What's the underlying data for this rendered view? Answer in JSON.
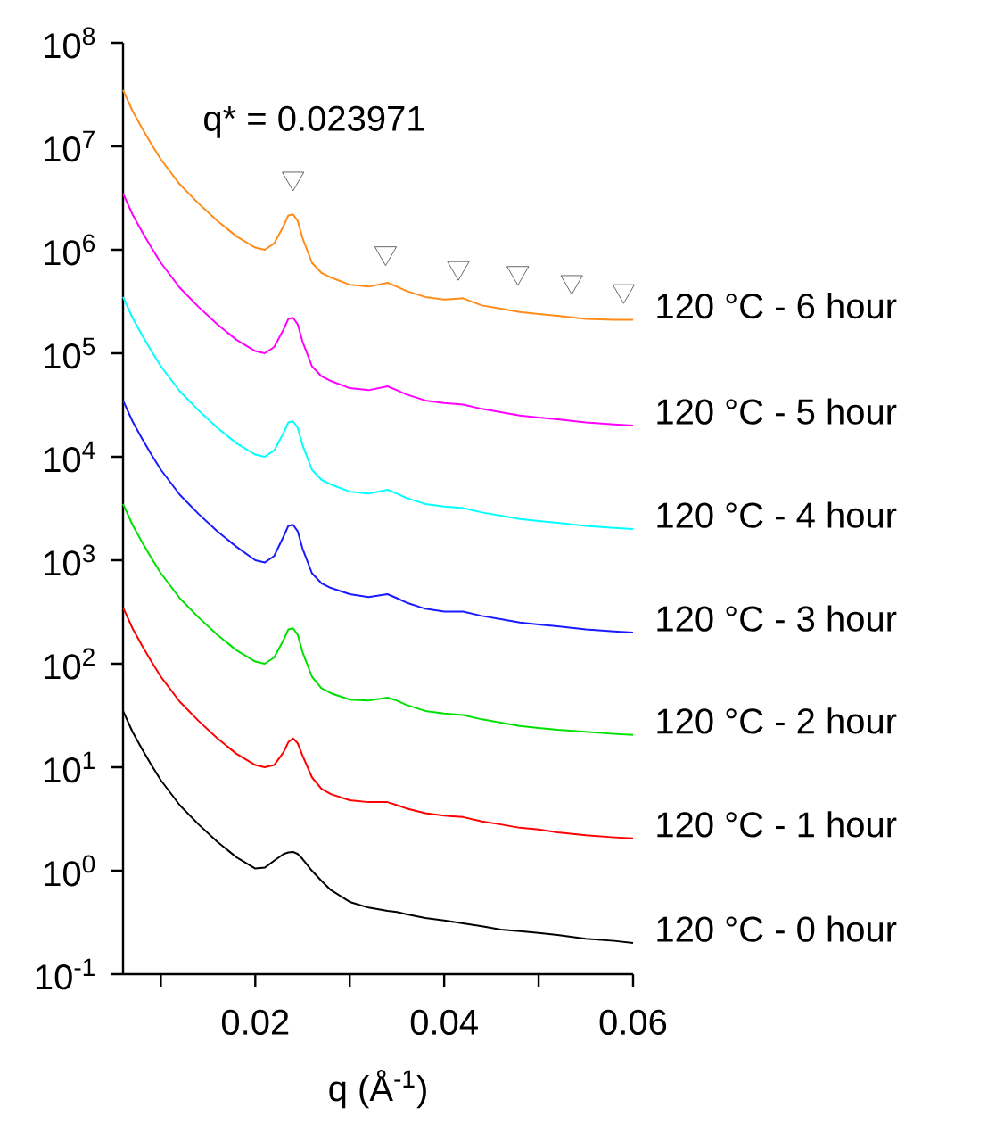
{
  "chart_data": {
    "type": "line",
    "xlabel": "q (Å$^{-1}$)",
    "log": "y",
    "xlim": [
      0.006,
      0.06
    ],
    "ylim": [
      0.1,
      100000000
    ],
    "xticks": [
      {
        "value": 0.01,
        "label": null
      },
      0.02,
      {
        "value": 0.03,
        "label": null
      },
      0.04,
      {
        "value": 0.05,
        "label": null
      },
      0.06
    ],
    "yticks": [
      {
        "value": 0.1,
        "label": "10$^{-1}$"
      },
      {
        "value": 1,
        "label": "10$^{0}$"
      },
      {
        "value": 10,
        "label": "10$^{1}$"
      },
      {
        "value": 100,
        "label": "10$^{2}$"
      },
      {
        "value": 1000,
        "label": "10$^{3}$"
      },
      {
        "value": 10000,
        "label": "10$^{4}$"
      },
      {
        "value": 100000,
        "label": "10$^{5}$"
      },
      {
        "value": 1000000,
        "label": "10$^{6}$"
      },
      {
        "value": 10000000,
        "label": "10$^{7}$"
      },
      {
        "value": 100000000,
        "label": "10$^{8}$"
      }
    ],
    "x": [
      0.006,
      0.007,
      0.008,
      0.009,
      0.01,
      0.012,
      0.014,
      0.016,
      0.018,
      0.02,
      0.021,
      0.022,
      0.023,
      0.0235,
      0.024,
      0.0245,
      0.025,
      0.026,
      0.027,
      0.028,
      0.03,
      0.032,
      0.034,
      0.035,
      0.036,
      0.038,
      0.04,
      0.042,
      0.044,
      0.046,
      0.048,
      0.05,
      0.052,
      0.055,
      0.058,
      0.06
    ],
    "annotations": [
      "q* = 0.023971"
    ],
    "series": [
      {
        "name": "120 °C - 0 hour",
        "color": "#000000",
        "values": [
          35,
          22,
          15,
          10.5,
          7.5,
          4.3,
          2.8,
          1.9,
          1.35,
          1.05,
          1.07,
          1.25,
          1.45,
          1.5,
          1.52,
          1.45,
          1.3,
          1.0,
          0.8,
          0.65,
          0.5,
          0.44,
          0.41,
          0.4,
          0.38,
          0.35,
          0.33,
          0.31,
          0.29,
          0.27,
          0.26,
          0.25,
          0.24,
          0.22,
          0.21,
          0.2
        ]
      },
      {
        "name": "120 °C - 1 hour",
        "color": "#ff0000",
        "values": [
          350,
          220,
          150,
          105,
          75,
          43,
          28,
          19,
          13.5,
          10.5,
          10,
          10.5,
          14,
          17.5,
          19,
          17,
          13,
          8,
          6.2,
          5.5,
          4.8,
          4.6,
          4.6,
          4.3,
          4,
          3.6,
          3.4,
          3.3,
          3.0,
          2.8,
          2.6,
          2.5,
          2.35,
          2.2,
          2.1,
          2.05
        ]
      },
      {
        "name": "120 °C - 2 hour",
        "color": "#00e000",
        "values": [
          3500,
          2200,
          1500,
          1050,
          750,
          430,
          280,
          190,
          135,
          105,
          100,
          115,
          170,
          215,
          220,
          190,
          130,
          75,
          58,
          52,
          45,
          44,
          47,
          44,
          40,
          35,
          33,
          32,
          29,
          27,
          25,
          24,
          23,
          22,
          21,
          20.5
        ]
      },
      {
        "name": "120 °C - 3 hour",
        "color": "#1a1aff",
        "values": [
          35000,
          22000,
          15000,
          10500,
          7500,
          4300,
          2800,
          1900,
          1350,
          1000,
          950,
          1100,
          1700,
          2150,
          2200,
          1900,
          1300,
          750,
          600,
          540,
          470,
          440,
          470,
          430,
          390,
          340,
          320,
          320,
          290,
          270,
          250,
          240,
          230,
          215,
          205,
          200
        ]
      },
      {
        "name": "120 °C - 4 hour",
        "color": "#00ffff",
        "values": [
          350000,
          220000,
          150000,
          105000,
          75000,
          43000,
          28000,
          19000,
          13500,
          10500,
          10000,
          11500,
          17000,
          21500,
          22000,
          19000,
          13000,
          7500,
          6000,
          5400,
          4600,
          4400,
          4800,
          4400,
          4000,
          3500,
          3300,
          3200,
          2900,
          2700,
          2500,
          2400,
          2300,
          2150,
          2050,
          2000
        ]
      },
      {
        "name": "120 °C - 5 hour",
        "color": "#ff00ff",
        "values": [
          3500000,
          2200000,
          1500000,
          1050000,
          750000,
          430000,
          280000,
          190000,
          135000,
          105000,
          100000,
          115000,
          170000,
          215000,
          220000,
          190000,
          130000,
          75000,
          60000,
          54000,
          46000,
          44000,
          48000,
          44000,
          40000,
          35000,
          33000,
          32000,
          29000,
          27000,
          25000,
          24000,
          23000,
          21500,
          20500,
          20000
        ]
      },
      {
        "name": "120 °C - 6 hour",
        "color": "#ff8c1a",
        "values": [
          35000000,
          22000000,
          15000000,
          10500000,
          7500000,
          4300000,
          2800000,
          1900000,
          1350000,
          1050000,
          1000000,
          1150000,
          1700000,
          2150000,
          2200000,
          1900000,
          1300000,
          750000,
          600000,
          540000,
          460000,
          440000,
          480000,
          440000,
          400000,
          350000,
          330000,
          340000,
          290000,
          270000,
          250000,
          240000,
          230000,
          215000,
          210000,
          210000
        ]
      },
      {
        "type": "scatter",
        "marker": "triangle",
        "color": "#404040",
        "x": [
          0.024,
          0.0338,
          0.0415,
          0.0478,
          0.0535,
          0.059
        ],
        "values": [
          4900000,
          930000,
          670000,
          600000,
          490000,
          400000
        ]
      }
    ]
  }
}
